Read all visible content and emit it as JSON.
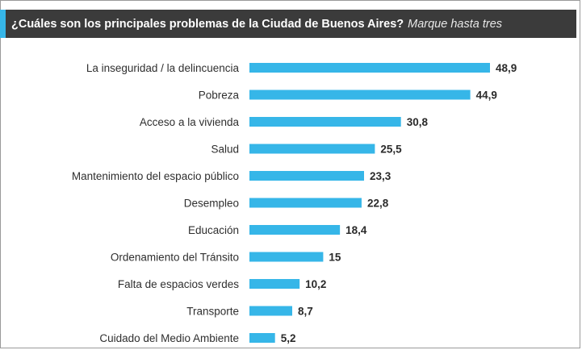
{
  "chart_data": {
    "type": "bar",
    "orientation": "horizontal",
    "title": "¿Cuáles son los principales problemas de la Ciudad de Buenos Aires?",
    "subtitle": "Marque hasta tres",
    "categories": [
      "La inseguridad / la delincuencia",
      "Pobreza",
      "Acceso a la vivienda",
      "Salud",
      "Mantenimiento del espacio público",
      "Desempleo",
      "Educación",
      "Ordenamiento del Tránsito",
      "Falta de espacios verdes",
      "Transporte",
      "Cuidado del Medio Ambiente"
    ],
    "values": [
      48.9,
      44.9,
      30.8,
      25.5,
      23.3,
      22.8,
      18.4,
      15,
      10.2,
      8.7,
      5.2
    ],
    "value_labels": [
      "48,9",
      "44,9",
      "30,8",
      "25,5",
      "23,3",
      "22,8",
      "18,4",
      "15",
      "10,2",
      "8,7",
      "5,2"
    ],
    "xlim": [
      0,
      48.9
    ],
    "grid": false,
    "legend": "none",
    "bar_color": "#36b6e8",
    "title_bar_color": "#3b3b3b",
    "accent_color": "#36b6e8"
  }
}
